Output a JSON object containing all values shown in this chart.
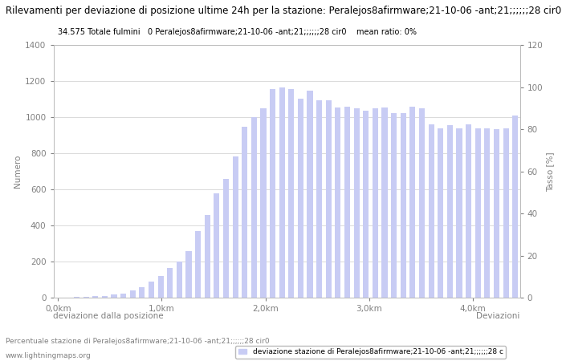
{
  "title": "Rilevamenti per deviazione di posizione ultime 24h per la stazione: Peralejos8afirmware;21-10-06 -ant;21;;;;;;28 cir0",
  "subtitle": "34.575 Totale fulmini   0 Peralejos8afirmware;21-10-06 -ant;21;;;;;;28 cir0    mean ratio: 0%",
  "xlabel_left": "deviazione dalla posizione",
  "xlabel_right": "Deviazioni",
  "ylabel_left": "Numero",
  "ylabel_right": "Tasso [%]",
  "legend_label": "deviazione stazione di Peralejos8afirmware;21-10-06 -ant;21;;;;;;28 c",
  "footer_line1": "Percentuale stazione di Peralejos8afirmware;21-10-06 -ant;21;;;;;;28 cir0",
  "footer_line2": "www.lightningmaps.org",
  "bar_color": "#c8ccf4",
  "background_color": "#ffffff",
  "grid_color": "#cccccc",
  "title_fontsize": 8.5,
  "subtitle_fontsize": 7,
  "axis_fontsize": 7.5,
  "tick_fontsize": 7.5,
  "ylim_left": [
    0,
    1400
  ],
  "ylim_right": [
    0,
    120
  ],
  "x_ticks": [
    0.0,
    1.0,
    2.0,
    3.0,
    4.0
  ],
  "x_tick_labels": [
    "0,0km",
    "1,0km",
    "2,0km",
    "3,0km",
    "4,0km"
  ],
  "bar_values": [
    2,
    3,
    4,
    5,
    8,
    12,
    18,
    25,
    40,
    60,
    90,
    120,
    165,
    200,
    260,
    370,
    460,
    580,
    660,
    785,
    950,
    1000,
    1050,
    1155,
    1165,
    1155,
    1105,
    1150,
    1095,
    1095,
    1055,
    1060,
    1050,
    1035,
    1050,
    1055,
    1025,
    1025,
    1060,
    1050,
    960,
    940,
    955,
    940,
    960,
    940,
    940,
    935,
    940,
    1010
  ],
  "bar_width": 0.055,
  "bar_spacing": 0.09
}
